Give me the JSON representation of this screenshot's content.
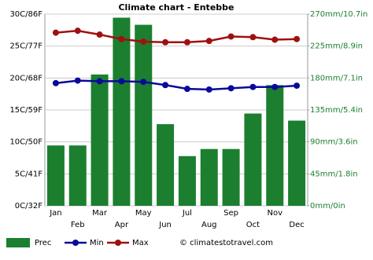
{
  "chart_data": {
    "type": "climate",
    "title": "Climate chart - Entebbe",
    "categories": [
      "Jan",
      "Feb",
      "Mar",
      "Apr",
      "May",
      "Jun",
      "Jul",
      "Aug",
      "Sep",
      "Oct",
      "Nov",
      "Dec"
    ],
    "series": [
      {
        "name": "Prec",
        "color": "#1b7f2f",
        "kind": "bar",
        "axis": "y2",
        "values": [
          85,
          85,
          185,
          265,
          255,
          115,
          70,
          80,
          80,
          130,
          170,
          120
        ]
      },
      {
        "name": "Min",
        "color": "#0a0a9a",
        "kind": "line",
        "values": [
          19.2,
          19.6,
          19.5,
          19.5,
          19.4,
          18.9,
          18.3,
          18.2,
          18.4,
          18.6,
          18.6,
          18.8
        ]
      },
      {
        "name": "Max",
        "color": "#a01010",
        "kind": "line",
        "values": [
          27.1,
          27.4,
          26.8,
          26.1,
          25.7,
          25.6,
          25.6,
          25.8,
          26.5,
          26.4,
          26.0,
          26.1
        ]
      }
    ],
    "ylim": [
      0,
      30
    ],
    "yticks": [
      {
        "value": 0,
        "label": "0C/32F"
      },
      {
        "value": 5,
        "label": "5C/41F"
      },
      {
        "value": 10,
        "label": "10C/50F"
      },
      {
        "value": 15,
        "label": "15C/59F"
      },
      {
        "value": 20,
        "label": "20C/68F"
      },
      {
        "value": 25,
        "label": "25C/77F"
      },
      {
        "value": 30,
        "label": "30C/86F"
      }
    ],
    "y2lim": [
      0,
      270
    ],
    "y2ticks": [
      {
        "value": 0,
        "label": "0mm/0in"
      },
      {
        "value": 45,
        "label": "45mm/1.8in"
      },
      {
        "value": 90,
        "label": "90mm/3.6in"
      },
      {
        "value": 135,
        "label": "135mm/5.4in"
      },
      {
        "value": 180,
        "label": "180mm/7.1in"
      },
      {
        "value": 225,
        "label": "225mm/8.9in"
      },
      {
        "value": 270,
        "label": "270mm/10.7in"
      }
    ],
    "y2color": "#1b7f2f",
    "grid": true,
    "credit": "© climatestotravel.com"
  }
}
